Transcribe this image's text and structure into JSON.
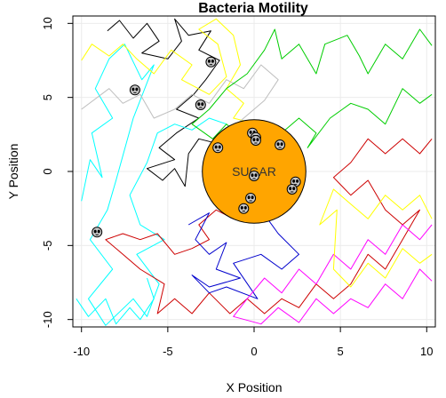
{
  "chart_data": {
    "type": "line",
    "title": "Bacteria Motility",
    "xlabel": "X Position",
    "ylabel": "Y Position",
    "xlim": [
      -10.5,
      10.5
    ],
    "ylim": [
      -10.5,
      10.5
    ],
    "xticks": [
      -10,
      -5,
      0,
      5,
      10
    ],
    "yticks": [
      -10,
      -5,
      0,
      5,
      10
    ],
    "grid": true,
    "target": {
      "label": "SUGAR",
      "center": [
        0,
        0
      ],
      "radius": 3,
      "color": "#FFA500"
    },
    "series": [
      {
        "color": "#000000",
        "points": [
          [
            -8.5,
            9.5
          ],
          [
            -7.8,
            10.2
          ],
          [
            -7,
            9
          ],
          [
            -6.2,
            10
          ],
          [
            -5.5,
            8.8
          ],
          [
            -6.5,
            8
          ],
          [
            -5,
            7.6
          ],
          [
            -4.2,
            8.8
          ],
          [
            -4.6,
            10.3
          ],
          [
            -3.8,
            9.2
          ],
          [
            -2.5,
            9.5
          ],
          [
            -3.2,
            8.2
          ],
          [
            -2,
            7.5
          ],
          [
            -2.8,
            6.2
          ],
          [
            -3.5,
            5.2
          ],
          [
            -4.5,
            4.2
          ],
          [
            -3.2,
            3.6
          ],
          [
            -4.5,
            2.6
          ],
          [
            -5.5,
            1.6
          ],
          [
            -4.6,
            0.8
          ],
          [
            -6.2,
            0.2
          ],
          [
            -5.3,
            -0.6
          ],
          [
            -4.6,
            0.2
          ],
          [
            -4,
            -1
          ],
          [
            -3.8,
            1.2
          ],
          [
            -3.2,
            2.2
          ],
          [
            -2.5,
            2
          ]
        ]
      },
      {
        "color": "#00FFFF",
        "points": [
          [
            -10,
            -2
          ],
          [
            -9.5,
            0.8
          ],
          [
            -8.8,
            -0.4
          ],
          [
            -9.4,
            2.6
          ],
          [
            -8.2,
            3.6
          ],
          [
            -9.2,
            5.6
          ],
          [
            -8.4,
            7.6
          ],
          [
            -7.5,
            8.6
          ],
          [
            -6.5,
            6.2
          ],
          [
            -5.8,
            7.2
          ],
          [
            -7,
            3.6
          ],
          [
            -8,
            -0.6
          ],
          [
            -8.5,
            -2.6
          ],
          [
            -9.5,
            -4.6
          ],
          [
            -8.2,
            -6.6
          ],
          [
            -9.6,
            -8.6
          ],
          [
            -8.6,
            -10.4
          ],
          [
            -7,
            -8.6
          ],
          [
            -6.2,
            -9.8
          ],
          [
            -5.5,
            -7.6
          ],
          [
            -6.8,
            -5.6
          ],
          [
            -5.2,
            -4.6
          ],
          [
            -6.6,
            -3.6
          ],
          [
            -7.2,
            -1.6
          ],
          [
            -6.2,
            0.6
          ],
          [
            -5.6,
            2.6
          ],
          [
            -4.6,
            3.2
          ],
          [
            -3.6,
            2.8
          ],
          [
            -2.6,
            3.6
          ],
          [
            -1.6,
            3.2
          ]
        ]
      },
      {
        "color": "#FFFF00",
        "points": [
          [
            -10,
            7.5
          ],
          [
            -9.4,
            8.6
          ],
          [
            -8.4,
            7.8
          ],
          [
            -7.6,
            8.6
          ],
          [
            -6.8,
            7.6
          ],
          [
            -5.8,
            6.6
          ],
          [
            -4.8,
            8.2
          ],
          [
            -3.6,
            7.2
          ],
          [
            -4.2,
            6.2
          ],
          [
            -2.6,
            5.2
          ],
          [
            -1.6,
            6.4
          ],
          [
            -2.1,
            8.6
          ],
          [
            -3.2,
            9.6
          ],
          [
            -2.2,
            10.3
          ],
          [
            -1.2,
            9.2
          ],
          [
            -0.8,
            7.2
          ],
          [
            -1.6,
            5.6
          ],
          [
            -0.6,
            4.6
          ],
          [
            -1.2,
            3.6
          ],
          [
            0.2,
            3.2
          ]
        ]
      },
      {
        "color": "#BEBEBE",
        "points": [
          [
            -10,
            4.2
          ],
          [
            -8.4,
            5.6
          ],
          [
            -7.6,
            4.6
          ],
          [
            -6.6,
            5.2
          ],
          [
            -5.8,
            3.6
          ],
          [
            -4.6,
            4.2
          ],
          [
            -3.6,
            5.2
          ],
          [
            -2.6,
            4.6
          ],
          [
            -1.6,
            6.2
          ],
          [
            -0.6,
            5.6
          ],
          [
            0.4,
            7.2
          ],
          [
            1.4,
            6.2
          ],
          [
            0.6,
            4.8
          ],
          [
            -0.6,
            3.6
          ],
          [
            -1.6,
            2.6
          ],
          [
            -2.6,
            1.6
          ],
          [
            -1.8,
            0.8
          ]
        ]
      },
      {
        "color": "#00CD00",
        "points": [
          [
            10.3,
            8.5
          ],
          [
            9.6,
            9.6
          ],
          [
            8.6,
            7.6
          ],
          [
            7.6,
            8.6
          ],
          [
            6.6,
            6.6
          ],
          [
            6.1,
            7.8
          ],
          [
            5.4,
            9.2
          ],
          [
            4.1,
            8.6
          ],
          [
            3.6,
            6.6
          ],
          [
            2.6,
            8.6
          ],
          [
            1.6,
            7.6
          ],
          [
            1.2,
            9.6
          ],
          [
            0.6,
            8.2
          ],
          [
            -0.4,
            6.6
          ],
          [
            -1.6,
            5.6
          ],
          [
            -2.6,
            4.2
          ],
          [
            -3.6,
            3.2
          ],
          [
            -2.4,
            2.2
          ],
          [
            -1.6,
            3.2
          ],
          [
            -0.6,
            2.2
          ],
          [
            0.4,
            3.2
          ],
          [
            1.2,
            2.2
          ],
          [
            2.6,
            3.6
          ],
          [
            3.6,
            2.6
          ],
          [
            3.1,
            1.6
          ],
          [
            4.4,
            3.6
          ],
          [
            5.6,
            4.6
          ],
          [
            6.6,
            4.2
          ],
          [
            7.6,
            3.2
          ],
          [
            8.6,
            5.6
          ],
          [
            9.6,
            4.6
          ],
          [
            10.3,
            5.2
          ]
        ]
      },
      {
        "color": "#CD0000",
        "points": [
          [
            10.3,
            2.2
          ],
          [
            9.6,
            1.2
          ],
          [
            8.6,
            2.2
          ],
          [
            7.6,
            1.2
          ],
          [
            6.6,
            2.2
          ],
          [
            5.6,
            0.6
          ],
          [
            4.6,
            -0.4
          ],
          [
            5.6,
            -1.6
          ],
          [
            6.6,
            -0.6
          ],
          [
            7.6,
            -2.6
          ],
          [
            8.6,
            -3.6
          ],
          [
            9.6,
            -2.6
          ],
          [
            8.6,
            -4.6
          ],
          [
            7.6,
            -6.6
          ],
          [
            6.6,
            -5.6
          ],
          [
            5.6,
            -7.6
          ],
          [
            4.6,
            -8.6
          ],
          [
            3.6,
            -7.6
          ],
          [
            2.6,
            -9.2
          ],
          [
            1.6,
            -8.6
          ],
          [
            0.6,
            -9.6
          ],
          [
            -0.4,
            -8.6
          ],
          [
            -1.4,
            -9.6
          ],
          [
            -2.6,
            -8.2
          ],
          [
            -3.6,
            -9.6
          ],
          [
            -4.6,
            -8.6
          ],
          [
            -5.6,
            -9.6
          ],
          [
            -5.2,
            -7.6
          ],
          [
            -6.6,
            -6.6
          ],
          [
            -7.6,
            -5.6
          ],
          [
            -8.6,
            -4.6
          ],
          [
            -7.6,
            -4.2
          ],
          [
            -6.6,
            -4.6
          ],
          [
            -5.6,
            -4.2
          ],
          [
            -4.6,
            -5.6
          ],
          [
            -3.6,
            -5.2
          ],
          [
            -2.6,
            -4.6
          ],
          [
            -3.2,
            -3.6
          ],
          [
            -2.2,
            -2.6
          ],
          [
            -1.2,
            -3.2
          ],
          [
            -0.6,
            -2.2
          ],
          [
            0.4,
            -2.8
          ]
        ]
      },
      {
        "color": "#0000CD",
        "points": [
          [
            -3.8,
            -3.6
          ],
          [
            -2.6,
            -2.8
          ],
          [
            -3.4,
            -4.6
          ],
          [
            -2.6,
            -5.6
          ],
          [
            -1.6,
            -4.8
          ],
          [
            -2.2,
            -6.6
          ],
          [
            -0.8,
            -7.2
          ],
          [
            -2.6,
            -7.8
          ],
          [
            -3.6,
            -7
          ],
          [
            -2.6,
            -8.2
          ],
          [
            -1.6,
            -7.8
          ],
          [
            0.2,
            -8.6
          ],
          [
            -1.2,
            -6.2
          ],
          [
            0.4,
            -5.6
          ],
          [
            1.6,
            -6.6
          ],
          [
            2.6,
            -5.6
          ],
          [
            1.4,
            -4.2
          ],
          [
            0.4,
            -2.6
          ]
        ]
      },
      {
        "color": "#FF00FF",
        "points": [
          [
            10.3,
            -3.6
          ],
          [
            9.6,
            -4.6
          ],
          [
            8.6,
            -3.6
          ],
          [
            7.6,
            -5.6
          ],
          [
            6.6,
            -4.6
          ],
          [
            5.6,
            -6.6
          ],
          [
            4.6,
            -5.6
          ],
          [
            3.6,
            -7.6
          ],
          [
            2.6,
            -6.6
          ],
          [
            1.6,
            -8.2
          ],
          [
            0.6,
            -7.2
          ],
          [
            -0.4,
            -8.6
          ],
          [
            -1.2,
            -9.8
          ],
          [
            0.4,
            -10.3
          ],
          [
            1.4,
            -9.2
          ],
          [
            2.6,
            -10.2
          ],
          [
            3.6,
            -8.6
          ],
          [
            4.6,
            -9.6
          ],
          [
            5.6,
            -8.6
          ],
          [
            6.6,
            -9.2
          ],
          [
            7.6,
            -7.6
          ],
          [
            8.6,
            -8.6
          ],
          [
            9.6,
            -6.6
          ],
          [
            10.3,
            -7.4
          ]
        ]
      },
      {
        "color": "#FFFF00",
        "points": [
          [
            10.3,
            -5.6
          ],
          [
            9.6,
            -6.2
          ],
          [
            8.6,
            -5.2
          ],
          [
            7.6,
            -7.2
          ],
          [
            6.6,
            -6.2
          ],
          [
            5.6,
            -7.8
          ],
          [
            4.6,
            -6.6
          ],
          [
            4.8,
            -2.6
          ],
          [
            3.8,
            -3.6
          ],
          [
            4.6,
            -1.2
          ],
          [
            5.6,
            -2.2
          ],
          [
            6.6,
            -3.2
          ],
          [
            7.6,
            -1.6
          ],
          [
            8.6,
            -2.6
          ],
          [
            9.6,
            -1.6
          ],
          [
            10.3,
            -3.2
          ]
        ]
      },
      {
        "color": "#00FFFF",
        "points": [
          [
            -10.3,
            -8.6
          ],
          [
            -9.6,
            -9.8
          ],
          [
            -8.6,
            -8.6
          ],
          [
            -8,
            -10.3
          ],
          [
            -7.2,
            -9.2
          ],
          [
            -6.6,
            -10
          ],
          [
            -5.8,
            -8.6
          ],
          [
            -6.2,
            -7.2
          ]
        ]
      }
    ],
    "markers": [
      [
        -6.9,
        5.5
      ],
      [
        -2.5,
        7.4
      ],
      [
        -3.1,
        4.5
      ],
      [
        -2.1,
        1.6
      ],
      [
        -0.1,
        2.6
      ],
      [
        0.1,
        2.3
      ],
      [
        0.1,
        2.1
      ],
      [
        1.5,
        1.8
      ],
      [
        0.0,
        -0.3
      ],
      [
        -0.6,
        -2.5
      ],
      [
        -0.2,
        -1.8
      ],
      [
        2.4,
        -0.7
      ],
      [
        2.2,
        -1.2
      ],
      [
        -9.1,
        -4.1
      ]
    ]
  }
}
